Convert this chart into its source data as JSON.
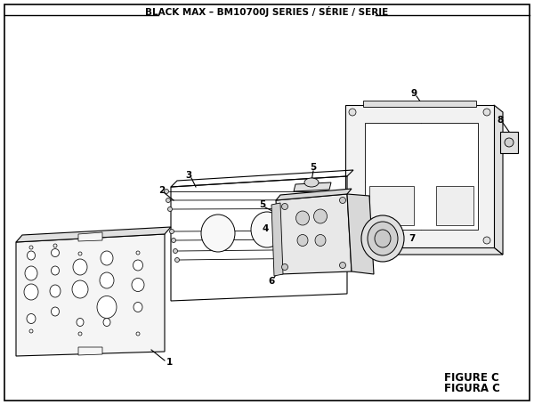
{
  "title": "BLACK MAX – BM10700J SERIES / SÉRIE / SERIE",
  "figure_label": "FIGURE C",
  "figura_label": "FIGURA C",
  "bg_color": "#ffffff",
  "line_color": "#000000",
  "title_fontsize": 7.5,
  "label_fontsize": 7.5,
  "figure_label_fontsize": 8.5
}
